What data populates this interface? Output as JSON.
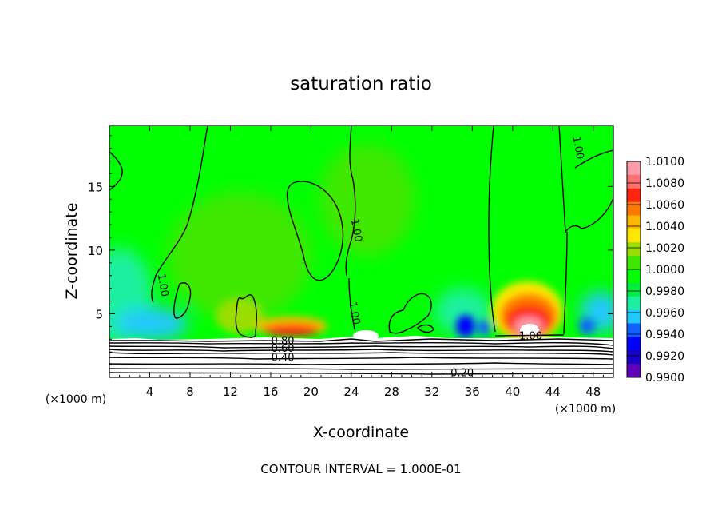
{
  "chart_data": {
    "type": "heatmap",
    "title": "saturation ratio",
    "xlabel": "X-coordinate",
    "ylabel": "Z-coordinate",
    "x_unit_left": "(×1000 m)",
    "x_unit_right": "(×1000 m)",
    "footer": "CONTOUR INTERVAL = 1.000E-01",
    "xlim": [
      0,
      50
    ],
    "ylim": [
      0,
      19.8
    ],
    "x_ticks": [
      4,
      8,
      12,
      16,
      20,
      24,
      28,
      32,
      36,
      40,
      44,
      48
    ],
    "x_tick_labels": [
      "4",
      "8",
      "12",
      "16",
      "20",
      "24",
      "28",
      "32",
      "36",
      "40",
      "44",
      "48"
    ],
    "y_ticks": [
      5,
      10,
      15
    ],
    "y_tick_labels": [
      "5",
      "10",
      "15"
    ],
    "colorbar": {
      "levels": [
        "1.0100",
        "1.0080",
        "1.0060",
        "1.0040",
        "1.0020",
        "1.0000",
        "0.9980",
        "0.9960",
        "0.9940",
        "0.9920",
        "0.9900"
      ],
      "colors": [
        "#ff9aa8",
        "#ff6e70",
        "#ff2410",
        "#ff7800",
        "#ffb800",
        "#ffe800",
        "#9ade00",
        "#40e800",
        "#00ff00",
        "#00ee40",
        "#1af0a0",
        "#20c8ff",
        "#1060ff",
        "#0000ff",
        "#1800c8",
        "#6000b8"
      ]
    },
    "contour_labels": [
      {
        "text": "1.00",
        "x": 5.0,
        "y": 7.2
      },
      {
        "text": "1.00",
        "x": 24.2,
        "y": 11.5
      },
      {
        "text": "1.00",
        "x": 24.0,
        "y": 5.0
      },
      {
        "text": "1.00",
        "x": 46.2,
        "y": 18.0
      },
      {
        "text": "1.00",
        "x": 41.8,
        "y": 3.0
      },
      {
        "text": "0.80",
        "x": 17.2,
        "y": 2.6
      },
      {
        "text": "0.60",
        "x": 17.2,
        "y": 2.0
      },
      {
        "text": "0.40",
        "x": 17.2,
        "y": 1.3
      },
      {
        "text": "0.20",
        "x": 35.0,
        "y": 0.1
      }
    ]
  }
}
